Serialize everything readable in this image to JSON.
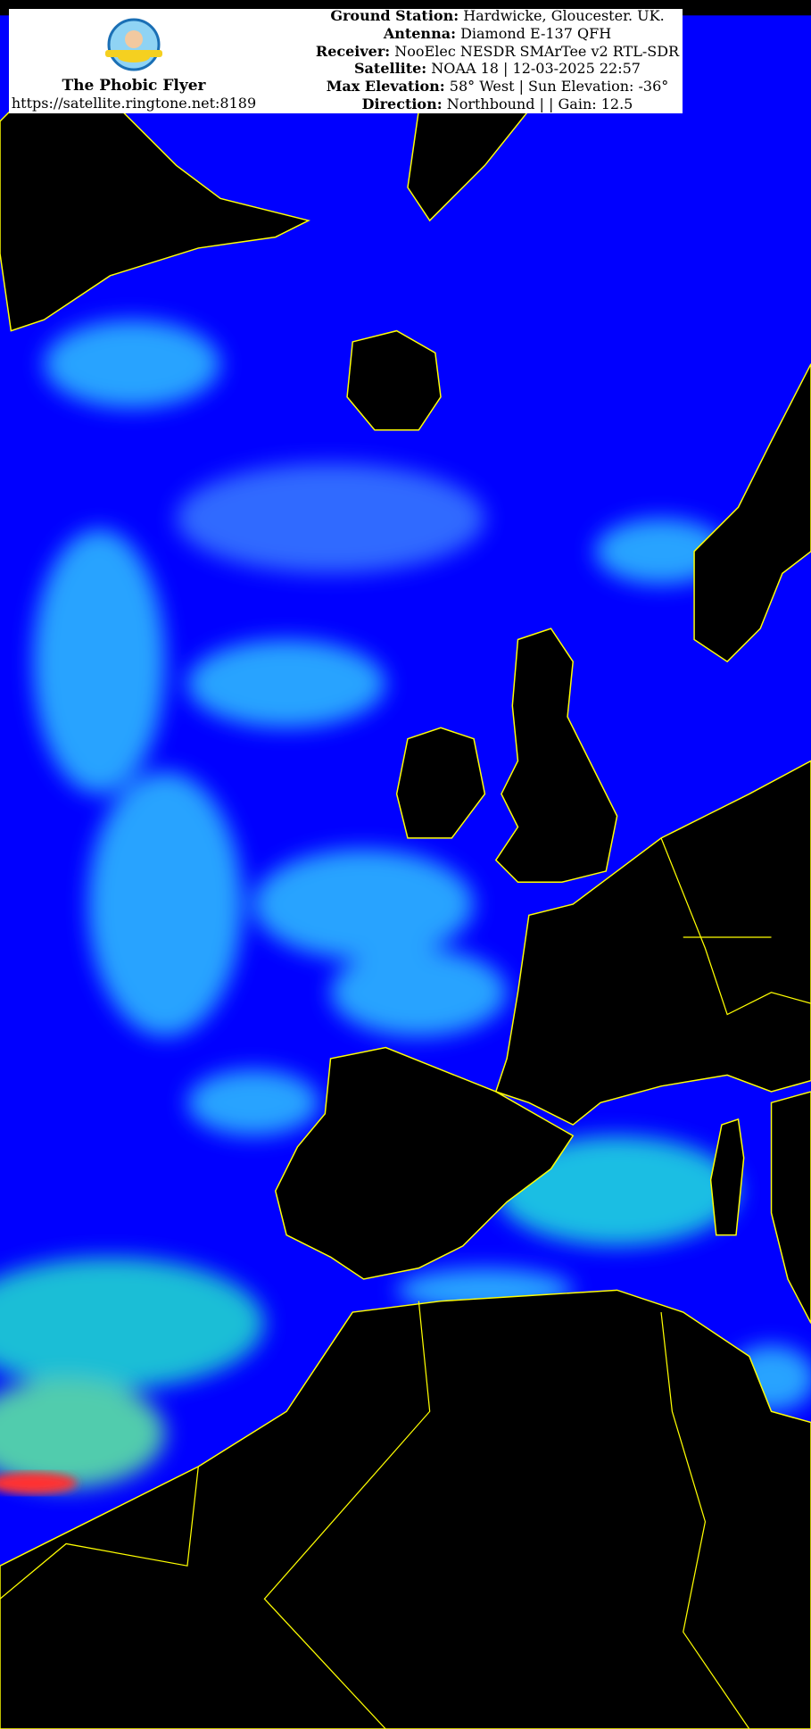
{
  "colors": {
    "land": "#000000",
    "ocean": "#0000ff",
    "cloud": "#33ccff",
    "coastline": "#ffff00",
    "header_bg": "#ffffff"
  },
  "branding": {
    "name": "The Phobic Flyer",
    "url": "https://satellite.ringtone.net:8189",
    "logo": "phobic-flyer-logo"
  },
  "info": [
    {
      "label": "Ground Station:",
      "value": "Hardwicke, Gloucester. UK."
    },
    {
      "label": "Antenna:",
      "value": "Diamond E-137 QFH"
    },
    {
      "label": "Receiver:",
      "value": "NooElec NESDR SMArTee v2 RTL-SDR"
    },
    {
      "label": "Satellite:",
      "value": "NOAA 18 | 12-03-2025 22:57"
    },
    {
      "label": "Max Elevation:",
      "value": "58° West | Sun Elevation: -36°"
    },
    {
      "label": "Direction:",
      "value": "Northbound | | Gain: 12.5"
    }
  ]
}
